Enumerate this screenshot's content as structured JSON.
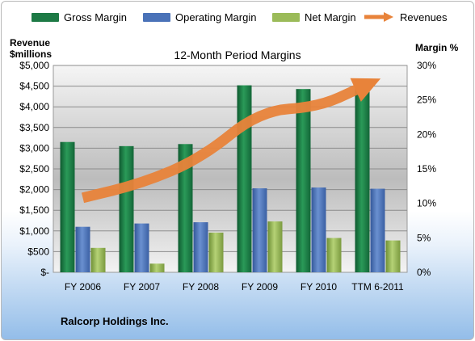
{
  "legend": [
    {
      "name": "Gross Margin",
      "color": "#1d7a45"
    },
    {
      "name": "Operating Margin",
      "color": "#4a72b8"
    },
    {
      "name": "Net Margin",
      "color": "#9bbb59"
    },
    {
      "name": "Revenues",
      "color": "#e8833a"
    }
  ],
  "left_axis_title": [
    "Revenue",
    "$millions"
  ],
  "right_axis_title": "Margin %",
  "company": "Ralcorp Holdings Inc.",
  "chart_data": {
    "type": "bar",
    "title": "12-Month Period Margins",
    "categories": [
      "FY 2006",
      "FY 2007",
      "FY 2008",
      "FY 2009",
      "FY 2010",
      "TTM 6-2011"
    ],
    "series": [
      {
        "name": "Gross Margin",
        "axis": "left",
        "values": [
          3150,
          3050,
          3100,
          4520,
          4430,
          4680
        ]
      },
      {
        "name": "Operating Margin",
        "axis": "left",
        "values": [
          1100,
          1180,
          1210,
          2030,
          2050,
          2020
        ]
      },
      {
        "name": "Net Margin",
        "axis": "left",
        "values": [
          590,
          210,
          960,
          1230,
          830,
          770
        ]
      },
      {
        "name": "Revenues",
        "type": "line-arrow",
        "axis": "left",
        "values": [
          1800,
          2150,
          2750,
          3900,
          4000,
          4650
        ]
      }
    ],
    "left_axis": {
      "ylim": [
        0,
        5000
      ],
      "ticks": [
        "$-",
        "$500",
        "$1,000",
        "$1,500",
        "$2,000",
        "$2,500",
        "$3,000",
        "$3,500",
        "$4,000",
        "$4,500",
        "$5,000"
      ]
    },
    "right_axis": {
      "ylim": [
        0,
        30
      ],
      "ticks": [
        "0%",
        "5%",
        "10%",
        "15%",
        "20%",
        "25%",
        "30%"
      ]
    },
    "grid": true,
    "legend_position": "top"
  }
}
